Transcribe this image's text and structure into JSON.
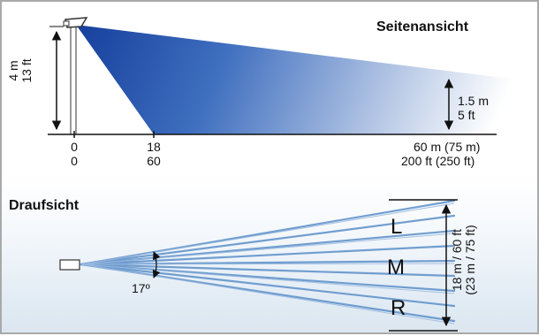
{
  "side_view": {
    "title": "Seitenansicht",
    "mount_height": {
      "m": "4 m",
      "ft": "13 ft"
    },
    "target_height": {
      "m": "1.5 m",
      "ft": "5 ft"
    },
    "ticks": [
      {
        "m": "0",
        "ft": "0"
      },
      {
        "m": "18",
        "ft": "60"
      },
      {
        "m": "60 m (75 m)",
        "ft": "200 ft (250 ft)"
      }
    ]
  },
  "top_view": {
    "title": "Draufsicht",
    "angle": "17º",
    "zones": [
      "L",
      "M",
      "R"
    ],
    "width": {
      "line1": "18 m / 60 ft",
      "line2": "(23 m / 75 ft)"
    }
  },
  "colors": {
    "beam_dark": "#1a4ea8",
    "beam_light": "#ffffff",
    "fan_ray": "#5b8fc9",
    "border": "#a9a9a9"
  }
}
